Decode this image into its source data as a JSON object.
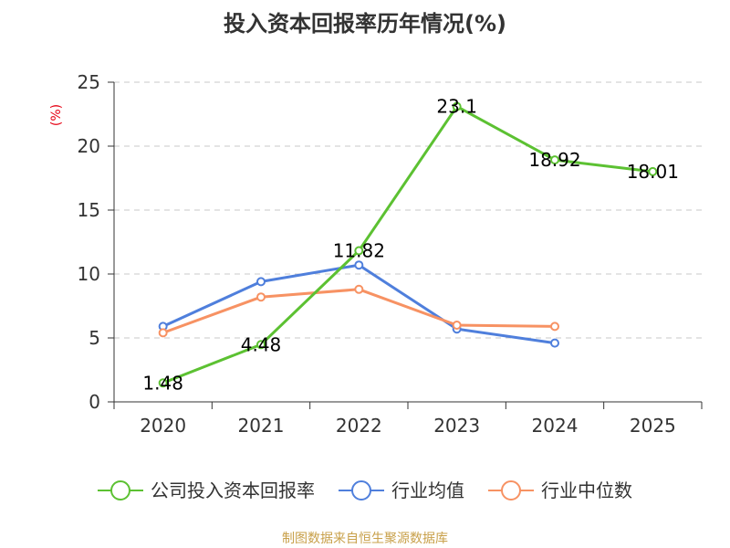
{
  "chart_data": {
    "type": "line",
    "title": "投入资本回报率历年情况(%)",
    "y_unit_label": "(%)",
    "categories": [
      "2020",
      "2021",
      "2022",
      "2023",
      "2024",
      "2025"
    ],
    "ylim": [
      0,
      25
    ],
    "y_ticks": [
      0,
      5,
      10,
      15,
      20,
      25
    ],
    "grid": true,
    "legend_position": "bottom",
    "series": [
      {
        "name": "公司投入资本回报率",
        "color": "#5cc132",
        "values": [
          1.48,
          4.48,
          11.82,
          23.1,
          18.92,
          18.01
        ],
        "labels": [
          "1.48",
          "4.48",
          "11.82",
          "23.1",
          "18.92",
          "18.01"
        ]
      },
      {
        "name": "行业均值",
        "color": "#4f7fdc",
        "values": [
          5.9,
          9.4,
          10.7,
          5.7,
          4.6,
          null
        ],
        "labels": null
      },
      {
        "name": "行业中位数",
        "color": "#f79263",
        "values": [
          5.4,
          8.2,
          8.8,
          6.0,
          5.9,
          null
        ],
        "labels": null
      }
    ]
  },
  "source": "制图数据来自恒生聚源数据库"
}
